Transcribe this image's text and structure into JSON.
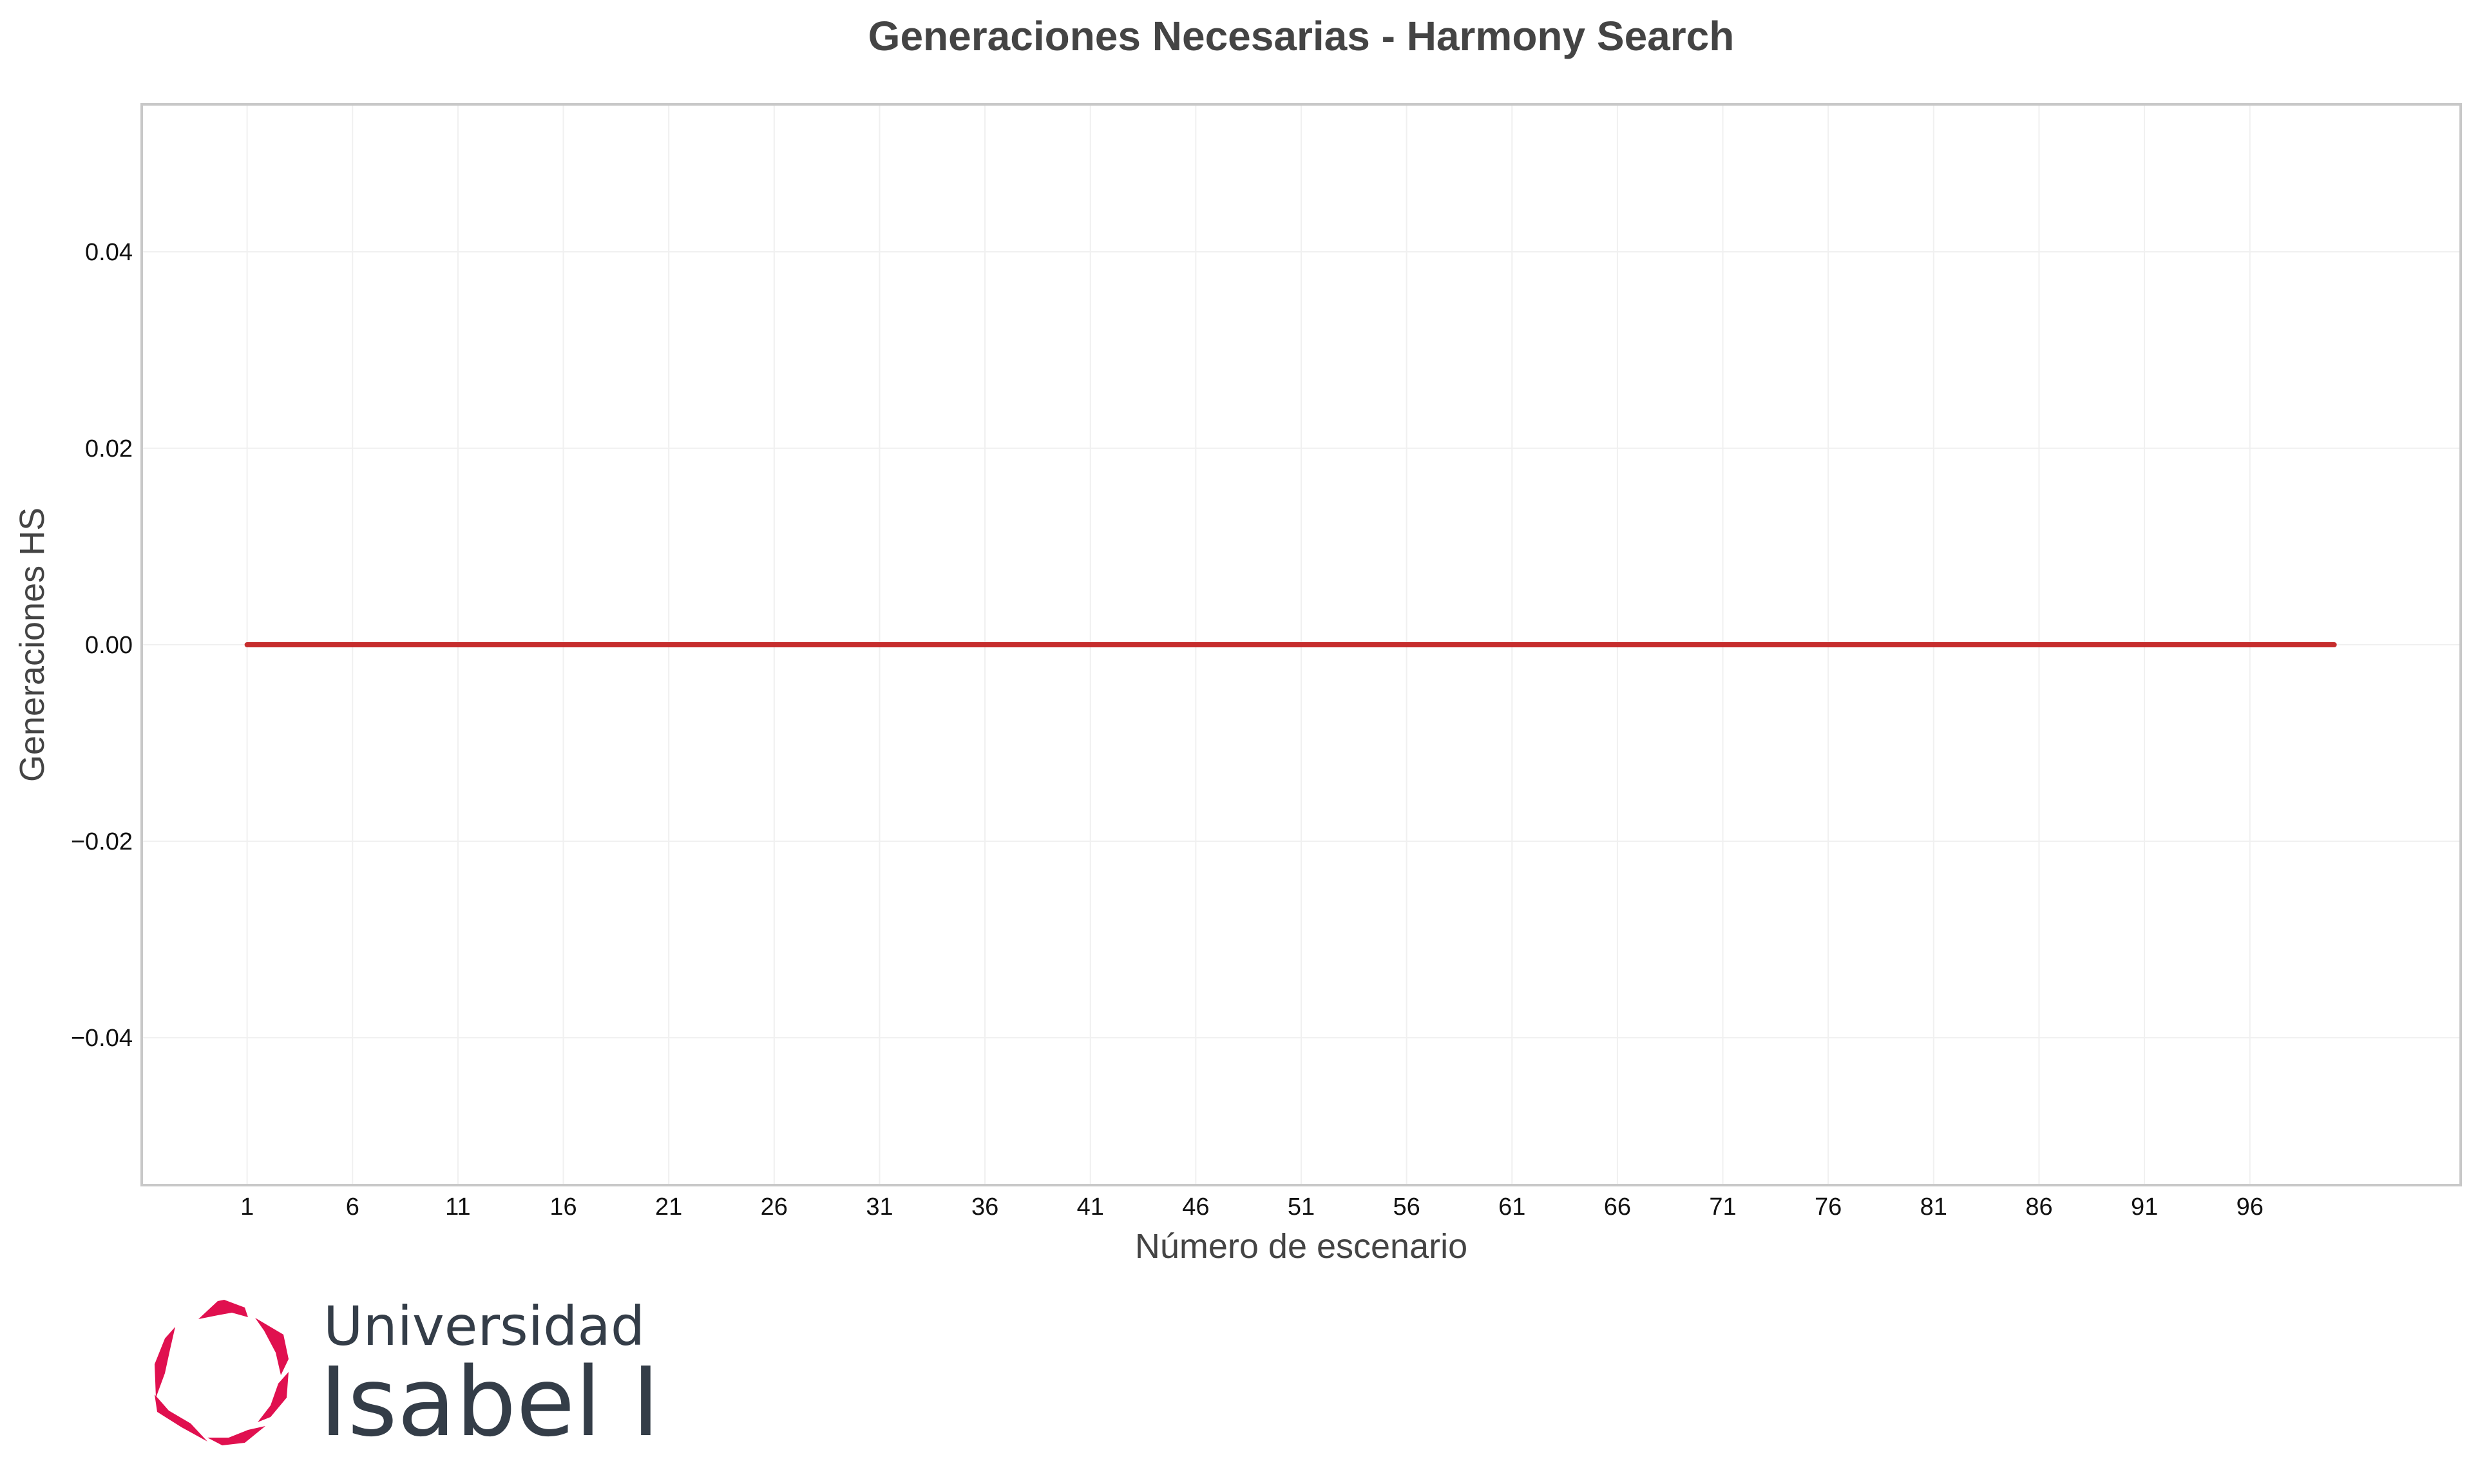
{
  "chart_data": {
    "type": "line",
    "title": "Generaciones Necesarias - Harmony Search",
    "xlabel": "Número de escenario",
    "ylabel": "Generaciones HS",
    "xlim": [
      -4,
      106
    ],
    "ylim": [
      -0.055,
      0.055
    ],
    "x_ticks": [
      1,
      6,
      11,
      16,
      21,
      26,
      31,
      36,
      41,
      46,
      51,
      56,
      61,
      66,
      71,
      76,
      81,
      86,
      91,
      96
    ],
    "y_ticks": [
      -0.04,
      -0.02,
      0.0,
      0.02,
      0.04
    ],
    "y_tick_labels": [
      "−0.04",
      "−0.02",
      "0.00",
      "0.02",
      "0.04"
    ],
    "grid": true,
    "series": [
      {
        "color": "#c62d2d",
        "x_start": 1,
        "x_end": 100,
        "value": 0
      }
    ]
  },
  "logo": {
    "line1": "Universidad",
    "line2": "Isabel I",
    "color": "#343d48",
    "accent": "#e0104f"
  }
}
